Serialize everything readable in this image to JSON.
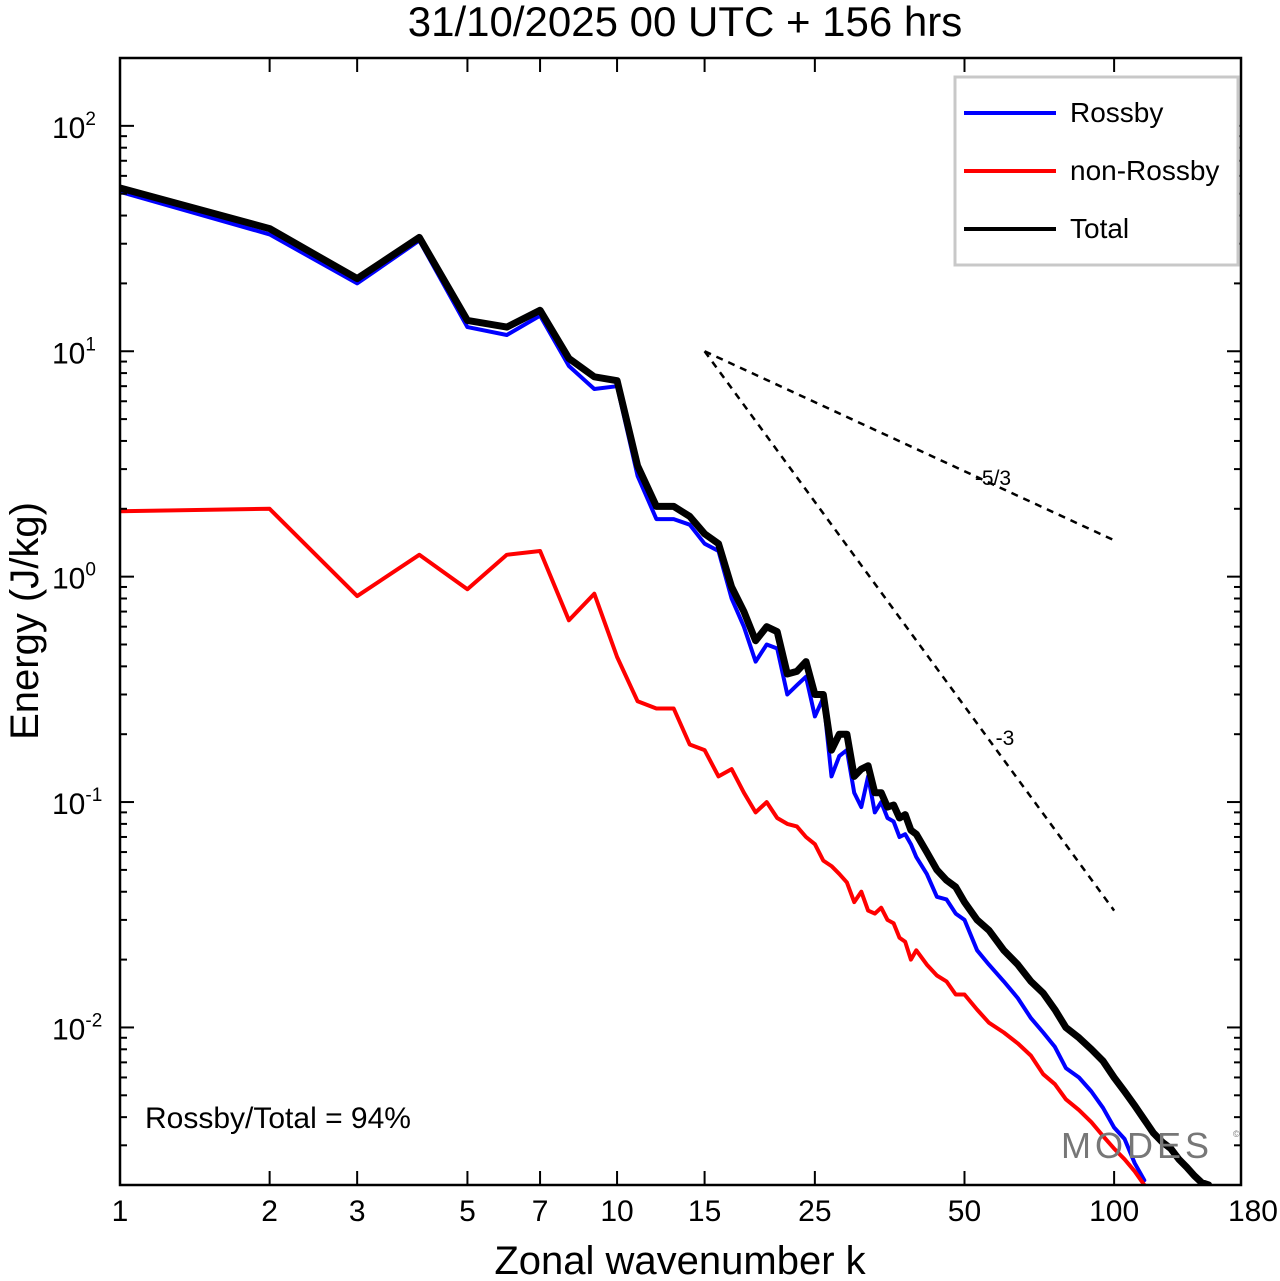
{
  "chart_data": {
    "type": "line",
    "title": "31/10/2025  00 UTC  + 156 hrs",
    "xlabel": "Zonal wavenumber k",
    "ylabel": "Energy (J/kg)",
    "xscale": "log",
    "yscale": "log",
    "xlim": [
      1,
      180
    ],
    "ylim": [
      0.002,
      200
    ],
    "x_ticks": [
      1,
      2,
      3,
      5,
      7,
      10,
      15,
      25,
      50,
      100,
      180
    ],
    "x_tick_labels": [
      "1",
      "2",
      "3",
      "5",
      "7",
      "10",
      "15",
      "25",
      "50",
      "100",
      "180"
    ],
    "y_ticks": [
      100,
      10,
      1,
      0.1,
      0.01
    ],
    "y_tick_labels": [
      {
        "base": "10",
        "exp": "2"
      },
      {
        "base": "10",
        "exp": "1"
      },
      {
        "base": "10",
        "exp": "0"
      },
      {
        "base": "10",
        "exp": "-1"
      },
      {
        "base": "10",
        "exp": "-2"
      }
    ],
    "legend_position": "top-right",
    "series": [
      {
        "name": "Rossby",
        "color": "#0000ff",
        "width": 4,
        "x": [
          1,
          2,
          3,
          4,
          5,
          6,
          7,
          8,
          9,
          10,
          11,
          12,
          13,
          14,
          15,
          16,
          17,
          18,
          19,
          20,
          21,
          22,
          23,
          24,
          25,
          26,
          27,
          28,
          29,
          30,
          31,
          32,
          33,
          34,
          35,
          36,
          37,
          38,
          39,
          40,
          42,
          44,
          46,
          48,
          50,
          53,
          56,
          60,
          64,
          68,
          72,
          76,
          80,
          85,
          90,
          95,
          100,
          105,
          110,
          115
        ],
        "y": [
          51,
          33,
          20,
          31,
          12.8,
          11.8,
          14.4,
          8.6,
          6.8,
          7.0,
          2.8,
          1.8,
          1.8,
          1.7,
          1.4,
          1.3,
          0.8,
          0.6,
          0.42,
          0.5,
          0.48,
          0.3,
          0.33,
          0.36,
          0.24,
          0.29,
          0.13,
          0.16,
          0.17,
          0.11,
          0.095,
          0.13,
          0.09,
          0.1,
          0.085,
          0.082,
          0.07,
          0.072,
          0.065,
          0.057,
          0.048,
          0.038,
          0.037,
          0.032,
          0.03,
          0.022,
          0.019,
          0.016,
          0.0135,
          0.011,
          0.0095,
          0.0082,
          0.0066,
          0.006,
          0.0052,
          0.0044,
          0.0036,
          0.0032,
          0.0025,
          0.0021
        ]
      },
      {
        "name": "non-Rossby",
        "color": "#ff0000",
        "width": 4,
        "x": [
          1,
          2,
          3,
          4,
          5,
          6,
          7,
          8,
          9,
          10,
          11,
          12,
          13,
          14,
          15,
          16,
          17,
          18,
          19,
          20,
          21,
          22,
          23,
          24,
          25,
          26,
          27,
          28,
          29,
          30,
          31,
          32,
          33,
          34,
          35,
          36,
          37,
          38,
          39,
          40,
          42,
          44,
          46,
          48,
          50,
          53,
          56,
          60,
          64,
          68,
          72,
          76,
          80,
          85,
          90,
          95,
          100,
          105,
          110,
          115
        ],
        "y": [
          1.95,
          2.0,
          0.82,
          1.25,
          0.88,
          1.25,
          1.3,
          0.64,
          0.84,
          0.44,
          0.28,
          0.26,
          0.26,
          0.18,
          0.17,
          0.13,
          0.14,
          0.11,
          0.09,
          0.1,
          0.085,
          0.08,
          0.078,
          0.07,
          0.065,
          0.055,
          0.052,
          0.048,
          0.044,
          0.036,
          0.04,
          0.033,
          0.032,
          0.034,
          0.03,
          0.029,
          0.025,
          0.024,
          0.02,
          0.022,
          0.019,
          0.017,
          0.016,
          0.014,
          0.014,
          0.012,
          0.0105,
          0.0095,
          0.0085,
          0.0075,
          0.0062,
          0.0056,
          0.0048,
          0.0043,
          0.0038,
          0.0033,
          0.0029,
          0.0026,
          0.0023,
          0.002
        ]
      },
      {
        "name": "Total",
        "color": "#000000",
        "width": 7,
        "x": [
          1,
          2,
          3,
          4,
          5,
          6,
          7,
          8,
          9,
          10,
          11,
          12,
          13,
          14,
          15,
          16,
          17,
          18,
          19,
          20,
          21,
          22,
          23,
          24,
          25,
          26,
          27,
          28,
          29,
          30,
          31,
          32,
          33,
          34,
          35,
          36,
          37,
          38,
          39,
          40,
          42,
          44,
          46,
          48,
          50,
          53,
          56,
          60,
          64,
          68,
          72,
          76,
          80,
          85,
          90,
          95,
          100,
          105,
          110,
          115,
          120,
          125,
          130,
          135,
          140,
          145,
          150,
          155
        ],
        "y": [
          53,
          35,
          21,
          32,
          13.7,
          12.8,
          15.2,
          9.3,
          7.7,
          7.4,
          3.1,
          2.05,
          2.05,
          1.85,
          1.55,
          1.4,
          0.9,
          0.7,
          0.52,
          0.6,
          0.57,
          0.37,
          0.38,
          0.42,
          0.3,
          0.3,
          0.17,
          0.2,
          0.2,
          0.13,
          0.14,
          0.145,
          0.11,
          0.11,
          0.095,
          0.097,
          0.085,
          0.088,
          0.075,
          0.072,
          0.06,
          0.05,
          0.045,
          0.042,
          0.036,
          0.03,
          0.027,
          0.022,
          0.019,
          0.016,
          0.0142,
          0.012,
          0.01,
          0.009,
          0.008,
          0.0071,
          0.006,
          0.0052,
          0.0045,
          0.0039,
          0.0034,
          0.0031,
          0.0029,
          0.0026,
          0.0024,
          0.0022,
          0.00205,
          0.002
        ]
      }
    ],
    "reference_lines": [
      {
        "label": "-5/3",
        "x": [
          15,
          100
        ],
        "y": [
          10,
          1.45
        ]
      },
      {
        "label": "-3",
        "x": [
          15,
          100
        ],
        "y": [
          10,
          0.033
        ]
      }
    ],
    "annotation": "Rossby/Total = 94%",
    "watermark": "MODES",
    "watermark_mark": "©"
  }
}
